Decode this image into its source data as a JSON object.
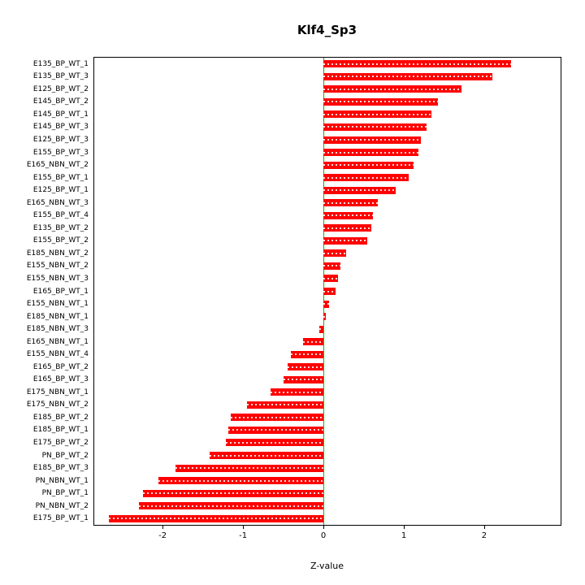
{
  "chart_data": {
    "type": "bar",
    "orientation": "horizontal",
    "title": "Klf4_Sp3",
    "xlabel": "Z-value",
    "xlim": [
      -2.85,
      2.95
    ],
    "x_ticks": [
      -2,
      -1,
      0,
      1,
      2
    ],
    "x_tick_labels": [
      "-2",
      "-1",
      "0",
      "1",
      "2"
    ],
    "bar_color": "#ff0000",
    "bar_stripe_color": "#ffd9d9",
    "zero_line_color": "#00c000",
    "categories": [
      "E135_BP_WT_1",
      "E135_BP_WT_3",
      "E125_BP_WT_2",
      "E145_BP_WT_2",
      "E145_BP_WT_1",
      "E145_BP_WT_3",
      "E125_BP_WT_3",
      "E155_BP_WT_3",
      "E165_NBN_WT_2",
      "E155_BP_WT_1",
      "E125_BP_WT_1",
      "E165_NBN_WT_3",
      "E155_BP_WT_4",
      "E135_BP_WT_2",
      "E155_BP_WT_2",
      "E185_NBN_WT_2",
      "E155_NBN_WT_2",
      "E155_NBN_WT_3",
      "E165_BP_WT_1",
      "E155_NBN_WT_1",
      "E185_NBN_WT_1",
      "E185_NBN_WT_3",
      "E165_NBN_WT_1",
      "E155_NBN_WT_4",
      "E165_BP_WT_2",
      "E165_BP_WT_3",
      "E175_NBN_WT_1",
      "E175_NBN_WT_2",
      "E185_BP_WT_2",
      "E185_BP_WT_1",
      "E175_BP_WT_2",
      "PN_BP_WT_2",
      "E185_BP_WT_3",
      "PN_NBN_WT_1",
      "PN_BP_WT_1",
      "PN_NBN_WT_2",
      "E175_BP_WT_1"
    ],
    "values": [
      2.33,
      2.1,
      1.72,
      1.42,
      1.34,
      1.28,
      1.21,
      1.18,
      1.12,
      1.06,
      0.9,
      0.68,
      0.62,
      0.6,
      0.55,
      0.28,
      0.21,
      0.18,
      0.15,
      0.07,
      0.03,
      -0.05,
      -0.25,
      -0.4,
      -0.45,
      -0.5,
      -0.66,
      -0.95,
      -1.15,
      -1.18,
      -1.21,
      -1.42,
      -1.84,
      -2.05,
      -2.24,
      -2.29,
      -2.67
    ]
  }
}
